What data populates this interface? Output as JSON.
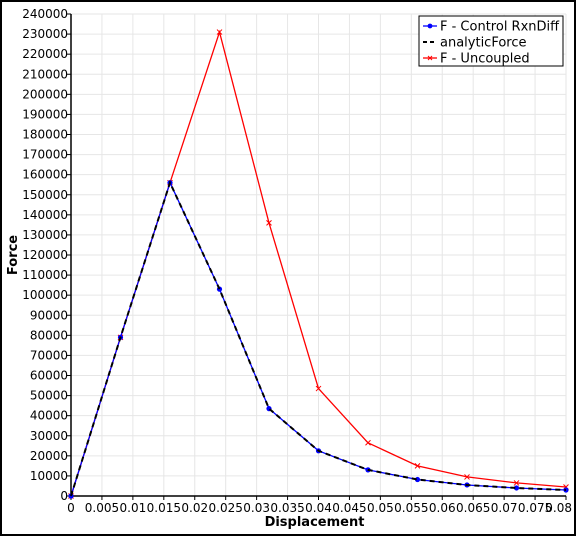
{
  "chart_data": {
    "type": "line",
    "xlabel": "Displacement",
    "ylabel": "Force",
    "xlim": [
      0,
      0.08
    ],
    "ylim": [
      0,
      240000
    ],
    "x_ticks": [
      0,
      0.005,
      0.01,
      0.015,
      0.02,
      0.025,
      0.03,
      0.035,
      0.04,
      0.045,
      0.05,
      0.055,
      0.06,
      0.065,
      0.07,
      0.075,
      0.08
    ],
    "x_tick_labels": [
      "0",
      "0.005",
      "0.01",
      "0.015",
      "0.02",
      "0.025",
      "0.03",
      "0.035",
      "0.04",
      "0.045",
      "0.05",
      "0.055",
      "0.06",
      "0.065",
      "0.07",
      "0.075",
      "0.08"
    ],
    "y_ticks": [
      0,
      10000,
      20000,
      30000,
      40000,
      50000,
      60000,
      70000,
      80000,
      90000,
      100000,
      110000,
      120000,
      130000,
      140000,
      150000,
      160000,
      170000,
      180000,
      190000,
      200000,
      210000,
      220000,
      230000,
      240000
    ],
    "grid": true,
    "legend_position": "top-right",
    "series": [
      {
        "name": "F - Control RxnDiff",
        "color": "#0000ff",
        "dash": "solid",
        "marker": "dot",
        "x": [
          0,
          0.008,
          0.016,
          0.024,
          0.032,
          0.04,
          0.048,
          0.056,
          0.064,
          0.072,
          0.08
        ],
        "y": [
          0,
          79000,
          156000,
          103000,
          43500,
          22500,
          13000,
          8200,
          5500,
          4000,
          3000
        ]
      },
      {
        "name": "analyticForce",
        "color": "#000000",
        "dash": "dashed",
        "marker": "none",
        "x": [
          0,
          0.008,
          0.016,
          0.024,
          0.032,
          0.04,
          0.048,
          0.056,
          0.064,
          0.072,
          0.08
        ],
        "y": [
          0,
          79000,
          156000,
          103000,
          43500,
          22500,
          13000,
          8200,
          5500,
          4000,
          3000
        ]
      },
      {
        "name": "F - Uncoupled",
        "color": "#ff0000",
        "dash": "solid",
        "marker": "cross",
        "x": [
          0,
          0.008,
          0.016,
          0.024,
          0.032,
          0.04,
          0.048,
          0.056,
          0.064,
          0.072,
          0.08
        ],
        "y": [
          0,
          79000,
          156000,
          231000,
          136000,
          53500,
          26500,
          15000,
          9500,
          6500,
          4500
        ]
      }
    ]
  }
}
